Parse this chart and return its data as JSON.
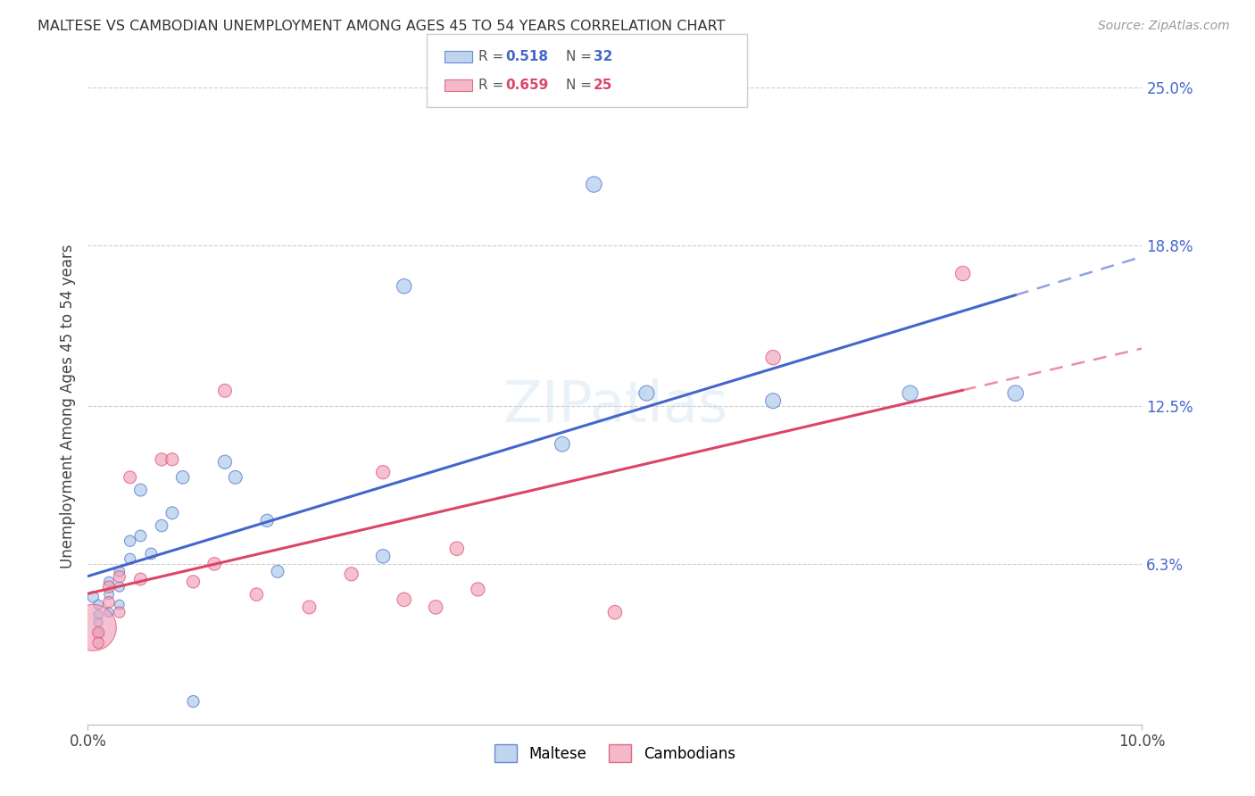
{
  "title": "MALTESE VS CAMBODIAN UNEMPLOYMENT AMONG AGES 45 TO 54 YEARS CORRELATION CHART",
  "source": "Source: ZipAtlas.com",
  "ylabel_label": "Unemployment Among Ages 45 to 54 years",
  "r1": 0.518,
  "n1": 32,
  "r2": 0.659,
  "n2": 25,
  "color_maltese": "#a8c8e8",
  "color_cambodian": "#f0a0b8",
  "color_line_maltese": "#4466cc",
  "color_line_cambodian": "#dd4466",
  "xlim": [
    0.0,
    0.1
  ],
  "ylim": [
    0.0,
    0.25
  ],
  "right_yticks": [
    0.063,
    0.125,
    0.188,
    0.25
  ],
  "right_ylabels": [
    "6.3%",
    "12.5%",
    "18.8%",
    "25.0%"
  ],
  "maltese_x": [
    0.0005,
    0.001,
    0.001,
    0.001,
    0.001,
    0.002,
    0.002,
    0.002,
    0.003,
    0.003,
    0.003,
    0.004,
    0.004,
    0.005,
    0.005,
    0.006,
    0.007,
    0.008,
    0.009,
    0.01,
    0.013,
    0.014,
    0.017,
    0.018,
    0.028,
    0.03,
    0.045,
    0.048,
    0.053,
    0.065,
    0.078,
    0.088
  ],
  "maltese_y": [
    0.05,
    0.047,
    0.043,
    0.04,
    0.036,
    0.056,
    0.051,
    0.044,
    0.06,
    0.054,
    0.047,
    0.072,
    0.065,
    0.092,
    0.074,
    0.067,
    0.078,
    0.083,
    0.097,
    0.009,
    0.103,
    0.097,
    0.08,
    0.06,
    0.066,
    0.172,
    0.11,
    0.212,
    0.13,
    0.127,
    0.13,
    0.13
  ],
  "maltese_sizes": [
    80,
    60,
    55,
    50,
    45,
    65,
    60,
    55,
    70,
    65,
    60,
    80,
    75,
    100,
    85,
    85,
    95,
    100,
    110,
    90,
    120,
    115,
    105,
    100,
    125,
    140,
    145,
    160,
    150,
    150,
    155,
    160
  ],
  "cambodian_x": [
    0.0005,
    0.001,
    0.001,
    0.002,
    0.002,
    0.003,
    0.003,
    0.004,
    0.005,
    0.007,
    0.008,
    0.01,
    0.012,
    0.013,
    0.016,
    0.021,
    0.025,
    0.028,
    0.03,
    0.033,
    0.035,
    0.037,
    0.05,
    0.065,
    0.083
  ],
  "cambodian_y": [
    0.038,
    0.036,
    0.032,
    0.054,
    0.048,
    0.058,
    0.044,
    0.097,
    0.057,
    0.104,
    0.104,
    0.056,
    0.063,
    0.131,
    0.051,
    0.046,
    0.059,
    0.099,
    0.049,
    0.046,
    0.069,
    0.053,
    0.044,
    0.144,
    0.177
  ],
  "cambodian_sizes": [
    1400,
    90,
    80,
    90,
    80,
    90,
    80,
    100,
    100,
    105,
    105,
    105,
    110,
    115,
    110,
    115,
    120,
    120,
    125,
    125,
    125,
    120,
    125,
    140,
    140
  ]
}
